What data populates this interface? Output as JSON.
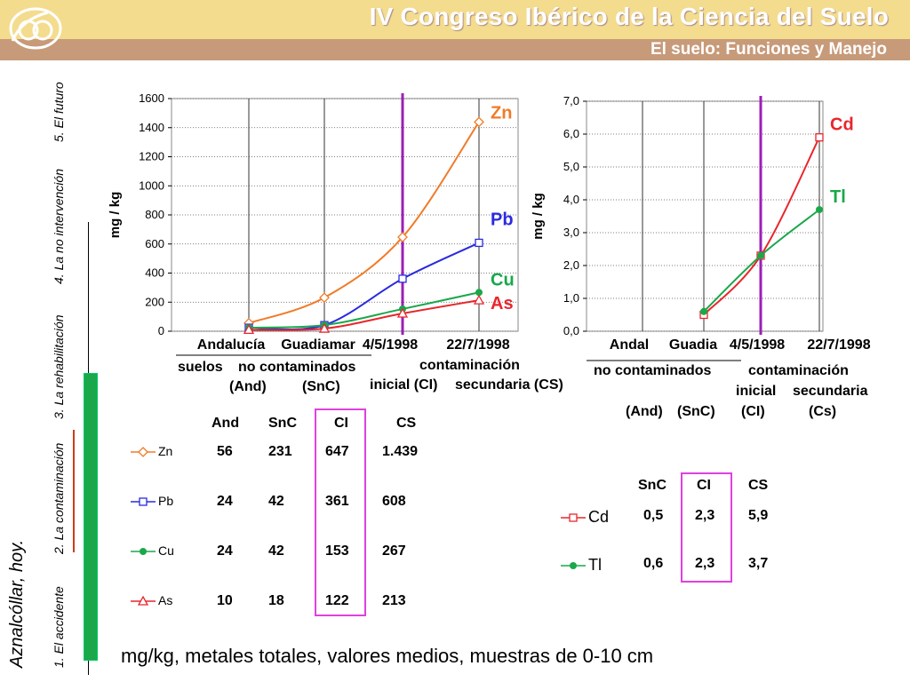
{
  "header": {
    "title": "IV Congreso Ibérico de la Ciencia del Suelo",
    "subtitle": "El suelo: Funciones y Manejo"
  },
  "side_nav": {
    "title": "Aznalcóllar, hoy.",
    "items": [
      "1. El accidente",
      "2. La contaminación",
      "3. La rehabilitación",
      "4. La no intervención",
      "5. El futuro"
    ]
  },
  "footnote": "mg/kg, metales totales, valores medios, muestras de 0-10 cm",
  "colors": {
    "Zn": "#f07b28",
    "Pb": "#2a2adf",
    "Cu": "#1aa84a",
    "As": "#e8262d",
    "Cd": "#e8262d",
    "Tl": "#1aa84a",
    "marker_line": "#9b1fb7",
    "highlight": "#e040e0"
  },
  "chart_data": [
    {
      "type": "line",
      "ylabel": "mg / kg",
      "ylim": [
        0,
        1600
      ],
      "yticks": [
        "0",
        "200",
        "400",
        "600",
        "800",
        "1000",
        "1200",
        "1400",
        "1600"
      ],
      "x_tick_labels": [
        "Andalucía",
        "Guadiamar",
        "4/5/1998",
        "22/7/1998"
      ],
      "x_group_labels": [
        "suelos",
        "no contaminados",
        "contaminación",
        "(And)",
        "(SnC)",
        "inicial (CI)",
        "secundaria (CS)"
      ],
      "categories": [
        "And",
        "SnC",
        "CI",
        "CS"
      ],
      "vertical_marker_at": "CI",
      "grid": true,
      "series": [
        {
          "name": "Zn",
          "values": [
            56,
            231,
            647,
            1439
          ],
          "marker": "diamond"
        },
        {
          "name": "Pb",
          "values": [
            24,
            42,
            361,
            608
          ],
          "marker": "square"
        },
        {
          "name": "Cu",
          "values": [
            24,
            42,
            153,
            267
          ],
          "marker": "circle"
        },
        {
          "name": "As",
          "values": [
            10,
            18,
            122,
            213
          ],
          "marker": "triangle"
        }
      ]
    },
    {
      "type": "line",
      "ylabel": "mg / kg",
      "ylim": [
        0,
        7
      ],
      "yticks": [
        "0,0",
        "1,0",
        "2,0",
        "3,0",
        "4,0",
        "5,0",
        "6,0",
        "7,0"
      ],
      "x_tick_labels": [
        "Andal",
        "Guadia",
        "4/5/1998",
        "22/7/1998"
      ],
      "x_group_labels": [
        "no contaminados",
        "contaminación",
        "inicial",
        "secundaria",
        "(And)",
        "(SnC)",
        "(CI)",
        "(Cs)"
      ],
      "categories": [
        "And",
        "SnC",
        "CI",
        "CS"
      ],
      "vertical_marker_at": "CI",
      "grid": true,
      "series": [
        {
          "name": "Cd",
          "values": [
            null,
            0.5,
            2.3,
            5.9
          ],
          "marker": "square"
        },
        {
          "name": "Tl",
          "values": [
            null,
            0.6,
            2.3,
            3.7
          ],
          "marker": "circle"
        }
      ]
    }
  ],
  "table1": {
    "headers": [
      "And",
      "SnC",
      "CI",
      "CS"
    ],
    "rows": [
      {
        "label": "Zn",
        "values": [
          "56",
          "231",
          "647",
          "1.439"
        ]
      },
      {
        "label": "Pb",
        "values": [
          "24",
          "42",
          "361",
          "608"
        ]
      },
      {
        "label": "Cu",
        "values": [
          "24",
          "42",
          "153",
          "267"
        ]
      },
      {
        "label": "As",
        "values": [
          "10",
          "18",
          "122",
          "213"
        ]
      }
    ]
  },
  "table2": {
    "headers": [
      "SnC",
      "CI",
      "CS"
    ],
    "rows": [
      {
        "label": "Cd",
        "values": [
          "0,5",
          "2,3",
          "5,9"
        ]
      },
      {
        "label": "Tl",
        "values": [
          "0,6",
          "2,3",
          "3,7"
        ]
      }
    ]
  }
}
